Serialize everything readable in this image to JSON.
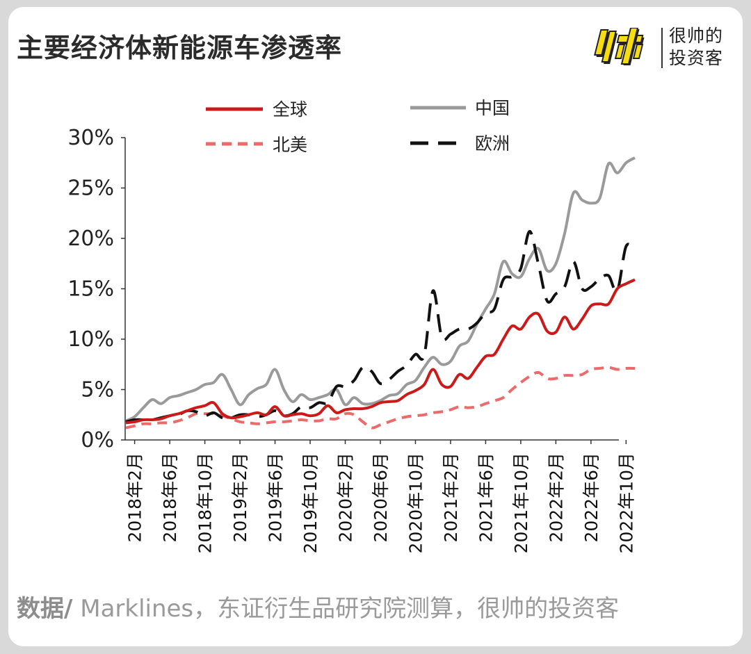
{
  "header": {
    "title": "主要经济体新能源车渗透率",
    "brand_line1": "很帅的",
    "brand_line2": "投资客"
  },
  "footer": {
    "source_label": "数据/",
    "source_text": " Marklines，东证衍生品研究院测算，很帅的投资客"
  },
  "colors": {
    "global": "#cc1a1a",
    "china": "#9a9a9a",
    "north_america": "#ec6a6a",
    "europe": "#111111",
    "brand_yellow": "#f6dc12"
  },
  "chart_data": {
    "type": "line",
    "y_unit": "%",
    "ylim": [
      0,
      30
    ],
    "y_ticks": [
      "0%",
      "5%",
      "10%",
      "15%",
      "20%",
      "25%",
      "30%"
    ],
    "x_tick_labels": [
      "2018年2月",
      "2018年6月",
      "2018年10月",
      "2019年2月",
      "2019年6月",
      "2019年10月",
      "2020年2月",
      "2020年6月",
      "2020年10月",
      "2021年2月",
      "2021年6月",
      "2021年10月",
      "2022年2月",
      "2022年6月",
      "2022年10月"
    ],
    "x": [
      "2018-01",
      "2018-02",
      "2018-03",
      "2018-04",
      "2018-05",
      "2018-06",
      "2018-07",
      "2018-08",
      "2018-09",
      "2018-10",
      "2018-11",
      "2018-12",
      "2019-01",
      "2019-02",
      "2019-03",
      "2019-04",
      "2019-05",
      "2019-06",
      "2019-07",
      "2019-08",
      "2019-09",
      "2019-10",
      "2019-11",
      "2019-12",
      "2020-01",
      "2020-02",
      "2020-03",
      "2020-04",
      "2020-05",
      "2020-06",
      "2020-07",
      "2020-08",
      "2020-09",
      "2020-10",
      "2020-11",
      "2020-12",
      "2021-01",
      "2021-02",
      "2021-03",
      "2021-04",
      "2021-05",
      "2021-06",
      "2021-07",
      "2021-08",
      "2021-09",
      "2021-10",
      "2021-11",
      "2021-12",
      "2022-01",
      "2022-02",
      "2022-03",
      "2022-04",
      "2022-05",
      "2022-06",
      "2022-07",
      "2022-08",
      "2022-09",
      "2022-10",
      "2022-11"
    ],
    "legend": {
      "position": "top",
      "entries": [
        "全球",
        "中国",
        "北美",
        "欧洲"
      ]
    },
    "series": [
      {
        "name": "全球",
        "color": "#cc1a1a",
        "style": "solid",
        "values": [
          1.7,
          1.8,
          2.0,
          2.0,
          2.1,
          2.4,
          2.6,
          2.9,
          3.2,
          3.4,
          3.7,
          2.6,
          2.2,
          2.3,
          2.5,
          2.7,
          2.5,
          3.3,
          2.4,
          2.5,
          2.6,
          2.4,
          2.6,
          3.4,
          2.7,
          3.0,
          3.1,
          3.1,
          3.3,
          3.7,
          3.8,
          3.9,
          4.5,
          4.9,
          5.5,
          7.0,
          5.5,
          5.3,
          6.5,
          6.1,
          7.2,
          8.3,
          8.5,
          10.0,
          11.3,
          11.0,
          12.2,
          12.5,
          10.8,
          10.7,
          12.2,
          11.0,
          12.0,
          13.3,
          13.5,
          13.5,
          15.0,
          15.5,
          15.9
        ]
      },
      {
        "name": "中国",
        "color": "#9a9a9a",
        "style": "solid",
        "values": [
          1.9,
          2.3,
          3.2,
          4.0,
          3.6,
          4.2,
          4.4,
          4.7,
          5.0,
          5.5,
          5.7,
          6.5,
          5.0,
          3.5,
          4.5,
          5.1,
          5.5,
          7.0,
          5.0,
          3.8,
          4.5,
          4.0,
          4.2,
          4.5,
          5.0,
          3.5,
          4.2,
          3.6,
          3.6,
          3.9,
          4.4,
          4.6,
          5.5,
          5.9,
          7.2,
          8.2,
          7.5,
          7.8,
          9.3,
          9.8,
          11.5,
          13.0,
          14.5,
          17.7,
          16.5,
          16.2,
          18.0,
          19.0,
          16.8,
          17.5,
          20.5,
          24.5,
          23.8,
          23.5,
          24.0,
          27.4,
          26.5,
          27.5,
          28.0
        ]
      },
      {
        "name": "北美",
        "color": "#ec6a6a",
        "style": "dashed",
        "values": [
          1.2,
          1.4,
          1.6,
          1.6,
          1.7,
          1.7,
          1.9,
          2.2,
          2.6,
          2.6,
          2.6,
          2.4,
          2.1,
          1.8,
          1.7,
          1.6,
          1.7,
          1.8,
          1.8,
          1.9,
          2.0,
          1.9,
          1.9,
          2.1,
          2.1,
          2.6,
          2.5,
          1.8,
          1.2,
          1.5,
          1.8,
          2.1,
          2.3,
          2.4,
          2.5,
          2.7,
          2.8,
          3.0,
          3.3,
          3.2,
          3.3,
          3.6,
          3.9,
          4.2,
          5.0,
          5.7,
          6.3,
          6.7,
          6.1,
          6.1,
          6.4,
          6.4,
          6.5,
          7.0,
          7.1,
          7.2,
          7.0,
          7.1,
          7.1
        ]
      },
      {
        "name": "欧洲",
        "color": "#111111",
        "style": "dashed",
        "values": [
          1.8,
          2.0,
          2.0,
          2.0,
          2.2,
          2.4,
          2.5,
          2.9,
          2.8,
          2.4,
          2.7,
          2.2,
          2.2,
          2.5,
          2.5,
          2.3,
          2.5,
          2.9,
          2.4,
          2.6,
          3.3,
          3.2,
          3.7,
          3.7,
          5.3,
          5.3,
          5.9,
          7.2,
          6.8,
          5.6,
          6.0,
          6.8,
          7.4,
          8.5,
          8.4,
          14.8,
          10.2,
          10.5,
          11.0,
          11.0,
          11.6,
          12.6,
          13.0,
          15.9,
          16.2,
          17.0,
          20.7,
          17.5,
          13.8,
          14.5,
          15.2,
          17.7,
          15.0,
          15.2,
          16.0,
          16.3,
          14.8,
          19.2,
          18.8
        ]
      }
    ]
  }
}
